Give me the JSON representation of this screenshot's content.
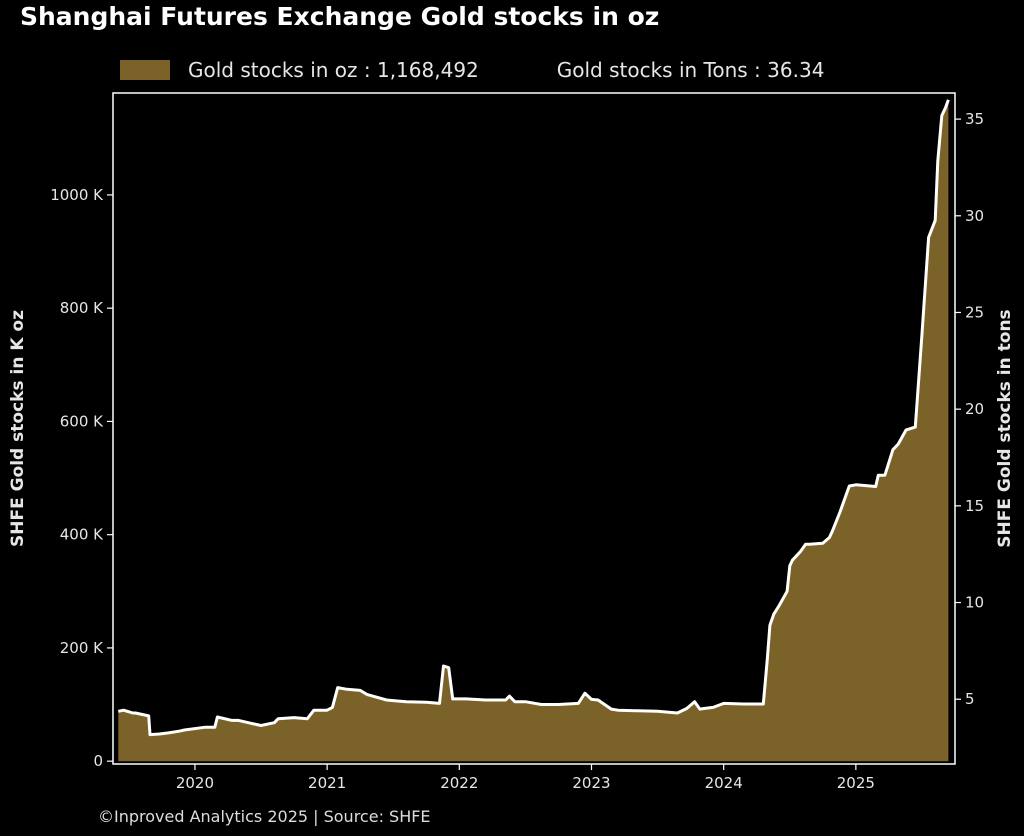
{
  "chart_data": {
    "type": "area",
    "title": "Shanghai Futures Exchange Gold stocks in oz",
    "legend": {
      "entry_label": "Gold stocks in oz : 1,168,492",
      "extra_label": "Gold stocks in Tons : 36.34",
      "placement": "top"
    },
    "ylabel": "SHFE Gold stocks in K oz",
    "y2label": "SHFE Gold stocks in tons",
    "xlabel": "",
    "xlim": [
      2019.38,
      2025.75
    ],
    "ylim": [
      -5,
      1180
    ],
    "y2lim": [
      1.65,
      36.35
    ],
    "xticks": [
      {
        "value": 2020,
        "label": "2020"
      },
      {
        "value": 2021,
        "label": "2021"
      },
      {
        "value": 2022,
        "label": "2022"
      },
      {
        "value": 2023,
        "label": "2023"
      },
      {
        "value": 2024,
        "label": "2024"
      },
      {
        "value": 2025,
        "label": "2025"
      }
    ],
    "yticks": [
      {
        "value": 0,
        "label": "0"
      },
      {
        "value": 200,
        "label": "200 K"
      },
      {
        "value": 400,
        "label": "400 K"
      },
      {
        "value": 600,
        "label": "600 K"
      },
      {
        "value": 800,
        "label": "800 K"
      },
      {
        "value": 1000,
        "label": "1000 K"
      }
    ],
    "y2ticks": [
      {
        "value": 5,
        "label": "5"
      },
      {
        "value": 10,
        "label": "10"
      },
      {
        "value": 15,
        "label": "15"
      },
      {
        "value": 20,
        "label": "20"
      },
      {
        "value": 25,
        "label": "25"
      },
      {
        "value": 30,
        "label": "30"
      },
      {
        "value": 35,
        "label": "35"
      }
    ],
    "grid": false,
    "series": [
      {
        "name": "Gold stocks in oz",
        "unit": "K oz",
        "x": [
          2019.42,
          2019.46,
          2019.53,
          2019.55,
          2019.65,
          2019.66,
          2019.73,
          2019.8,
          2019.88,
          2019.92,
          2020.08,
          2020.15,
          2020.17,
          2020.28,
          2020.33,
          2020.42,
          2020.5,
          2020.6,
          2020.63,
          2020.75,
          2020.85,
          2020.9,
          2021.0,
          2021.04,
          2021.08,
          2021.15,
          2021.25,
          2021.3,
          2021.45,
          2021.5,
          2021.6,
          2021.75,
          2021.85,
          2021.88,
          2021.92,
          2021.95,
          2022.05,
          2022.2,
          2022.35,
          2022.38,
          2022.42,
          2022.5,
          2022.62,
          2022.75,
          2022.9,
          2022.95,
          2023.0,
          2023.05,
          2023.15,
          2023.2,
          2023.35,
          2023.5,
          2023.65,
          2023.72,
          2023.78,
          2023.82,
          2023.85,
          2023.92,
          2024.0,
          2024.15,
          2024.22,
          2024.3,
          2024.33,
          2024.35,
          2024.38,
          2024.42,
          2024.48,
          2024.5,
          2024.52,
          2024.58,
          2024.62,
          2024.65,
          2024.75,
          2024.8,
          2024.82,
          2024.88,
          2024.95,
          2025.0,
          2025.15,
          2025.17,
          2025.22,
          2025.28,
          2025.32,
          2025.38,
          2025.45,
          2025.5,
          2025.55,
          2025.6,
          2025.62,
          2025.65,
          2025.68,
          2025.7
        ],
        "values": [
          88,
          90,
          85,
          85,
          80,
          47,
          48,
          50,
          53,
          55,
          60,
          60,
          78,
          72,
          72,
          67,
          63,
          68,
          75,
          77,
          75,
          90,
          90,
          95,
          130,
          127,
          125,
          118,
          108,
          107,
          105,
          104,
          102,
          168,
          165,
          110,
          110,
          108,
          108,
          115,
          105,
          105,
          100,
          100,
          102,
          120,
          109,
          108,
          92,
          90,
          89,
          88,
          85,
          93,
          105,
          92,
          93,
          95,
          102,
          101,
          101,
          101,
          180,
          240,
          260,
          275,
          300,
          345,
          355,
          370,
          383,
          383,
          385,
          395,
          405,
          440,
          486,
          488,
          485,
          505,
          505,
          550,
          560,
          585,
          590,
          755,
          925,
          955,
          1060,
          1140,
          1155,
          1168
        ]
      }
    ],
    "colors": {
      "background": "#000000",
      "fill": "#7b6229",
      "line": "#ffffff",
      "frame": "#ffffff",
      "text": "#e6e6e6"
    }
  },
  "footer": "©Inproved Analytics 2025 | Source: SHFE"
}
